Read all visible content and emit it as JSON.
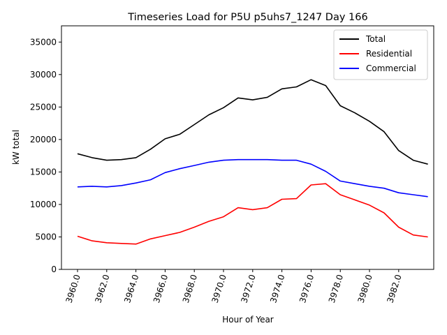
{
  "chart_data": {
    "type": "line",
    "title": "Timeseries Load for P5U p5uhs7_1247  Day 166",
    "xlabel": "Hour of Year",
    "ylabel": "kW total",
    "xlim": [
      3958.9,
      3984.4
    ],
    "ylim": [
      0,
      37500
    ],
    "x_ticks": [
      3960,
      3962,
      3964,
      3966,
      3968,
      3970,
      3972,
      3974,
      3976,
      3978,
      3980,
      3982
    ],
    "x_tick_labels": [
      "3960.0",
      "3962.0",
      "3964.0",
      "3966.0",
      "3968.0",
      "3970.0",
      "3972.0",
      "3974.0",
      "3976.0",
      "3978.0",
      "3980.0",
      "3982.0"
    ],
    "y_ticks": [
      0,
      5000,
      10000,
      15000,
      20000,
      25000,
      30000,
      35000
    ],
    "y_tick_labels": [
      "0",
      "5000",
      "10000",
      "15000",
      "20000",
      "25000",
      "30000",
      "35000"
    ],
    "legend_position": "top-right",
    "series": [
      {
        "name": "Total",
        "color": "#000000",
        "x": [
          3960,
          3961,
          3962,
          3963,
          3964,
          3965,
          3966,
          3967,
          3968,
          3969,
          3970,
          3971,
          3972,
          3973,
          3974,
          3975,
          3976,
          3977,
          3978,
          3979,
          3980,
          3981,
          3982,
          3983,
          3984
        ],
        "values": [
          17800,
          17200,
          16800,
          16900,
          17200,
          18500,
          20100,
          20800,
          22300,
          23800,
          24900,
          26400,
          26100,
          26500,
          27800,
          28100,
          29200,
          28300,
          25200,
          24100,
          22800,
          21200,
          18300,
          16800,
          16200
        ]
      },
      {
        "name": "Residential",
        "color": "#ff0000",
        "x": [
          3960,
          3961,
          3962,
          3963,
          3964,
          3965,
          3966,
          3967,
          3968,
          3969,
          3970,
          3971,
          3972,
          3973,
          3974,
          3975,
          3976,
          3977,
          3978,
          3979,
          3980,
          3981,
          3982,
          3983,
          3984
        ],
        "values": [
          5100,
          4400,
          4100,
          4000,
          3900,
          4700,
          5200,
          5700,
          6500,
          7400,
          8100,
          9500,
          9200,
          9500,
          10800,
          10900,
          13000,
          13200,
          11500,
          10700,
          9900,
          8700,
          6500,
          5300,
          5000
        ]
      },
      {
        "name": "Commercial",
        "color": "#0000ff",
        "x": [
          3960,
          3961,
          3962,
          3963,
          3964,
          3965,
          3966,
          3967,
          3968,
          3969,
          3970,
          3971,
          3972,
          3973,
          3974,
          3975,
          3976,
          3977,
          3978,
          3979,
          3980,
          3981,
          3982,
          3983,
          3984
        ],
        "values": [
          12700,
          12800,
          12700,
          12900,
          13300,
          13800,
          14900,
          15500,
          16000,
          16500,
          16800,
          16900,
          16900,
          16900,
          16800,
          16800,
          16200,
          15100,
          13600,
          13200,
          12800,
          12500,
          11800,
          11500,
          11200
        ]
      }
    ]
  }
}
